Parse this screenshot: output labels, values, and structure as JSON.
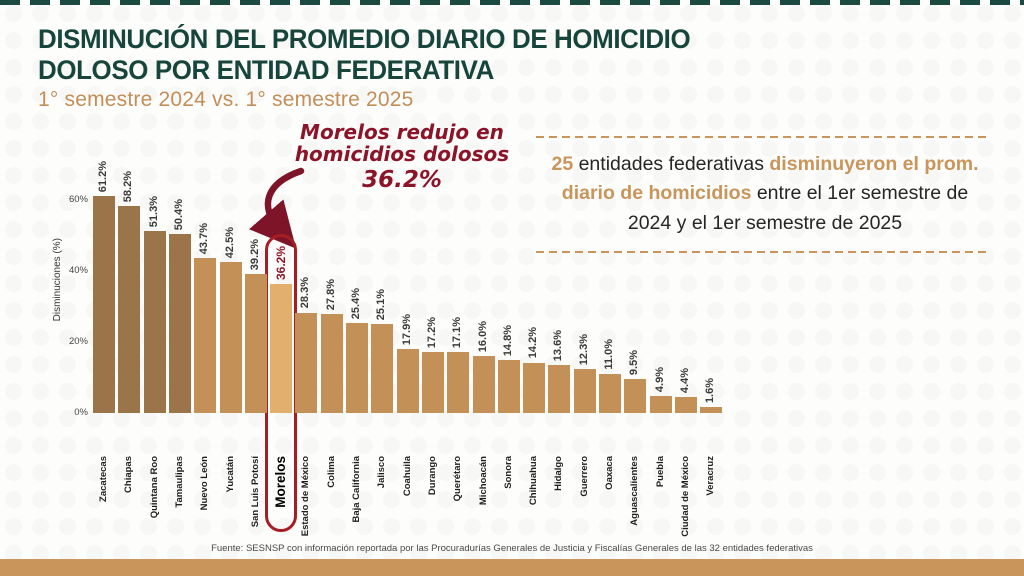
{
  "slide": {
    "title_line1": "DISMINUCIÓN DEL PROMEDIO DIARIO DE HOMICIDIO",
    "title_line2": "DOLOSO POR ENTIDAD FEDERATIVA",
    "subtitle": "1° semestre 2024 vs. 1° semestre 2025",
    "footer": "Fuente: SESNSP con información reportada por las Procuradurías Generales de Justicia y Fiscalías Generales de las 32 entidades federativas"
  },
  "annotation": {
    "line1": "Morelos redujo en",
    "line2": "homicidios dolosos",
    "line3": "36.2%"
  },
  "infobox": {
    "seg1": "25",
    "seg2": " entidades federativas ",
    "seg3": "disminuyeron el prom. diario de homicidios",
    "seg4": " entre el 1er semestre de 2024 y el 1er semestre de 2025"
  },
  "chart_data": {
    "type": "bar",
    "title": "Disminución del promedio diario de homicidio doloso por entidad federativa, 1° semestre 2024 vs. 1° semestre 2025",
    "ylabel": "Disminuciones (%)",
    "xlabel": "",
    "ylim": [
      0,
      65
    ],
    "grid": false,
    "legend": false,
    "yticks": [
      {
        "value": 0,
        "label": "0%"
      },
      {
        "value": 20,
        "label": "20%"
      },
      {
        "value": 40,
        "label": "40%"
      },
      {
        "value": 60,
        "label": "60%"
      }
    ],
    "categories": [
      "Zacatecas",
      "Chiapas",
      "Quintana Roo",
      "Tamaulipas",
      "Nuevo León",
      "Yucatán",
      "San Luis Potosí",
      "Morelos",
      "Estado de México",
      "Colima",
      "Baja California",
      "Jalisco",
      "Coahuila",
      "Durango",
      "Querétaro",
      "Michoacán",
      "Sonora",
      "Chihuahua",
      "Hidalgo",
      "Guerrero",
      "Oaxaca",
      "Aguascalientes",
      "Puebla",
      "Ciudad de México",
      "Veracruz"
    ],
    "values": [
      61.2,
      58.2,
      51.3,
      50.4,
      43.7,
      42.5,
      39.2,
      36.2,
      28.3,
      27.8,
      25.4,
      25.1,
      17.9,
      17.2,
      17.1,
      16.0,
      14.8,
      14.2,
      13.6,
      12.3,
      11.0,
      9.5,
      4.9,
      4.4,
      1.6
    ],
    "highlight_category": "Morelos",
    "highlight_index": 7,
    "dark_bar_count": 4,
    "colors": {
      "bar_dark": "#9b7549",
      "bar_normal": "#c39157",
      "bar_highlight": "#e2af6e",
      "value_label": "#3b3b3b",
      "highlight_value_label": "#8c1929",
      "highlight_outline": "#a61e24",
      "accent_tan": "#c9955a",
      "title_green": "#17453c",
      "annotation_red": "#8c1428"
    }
  }
}
